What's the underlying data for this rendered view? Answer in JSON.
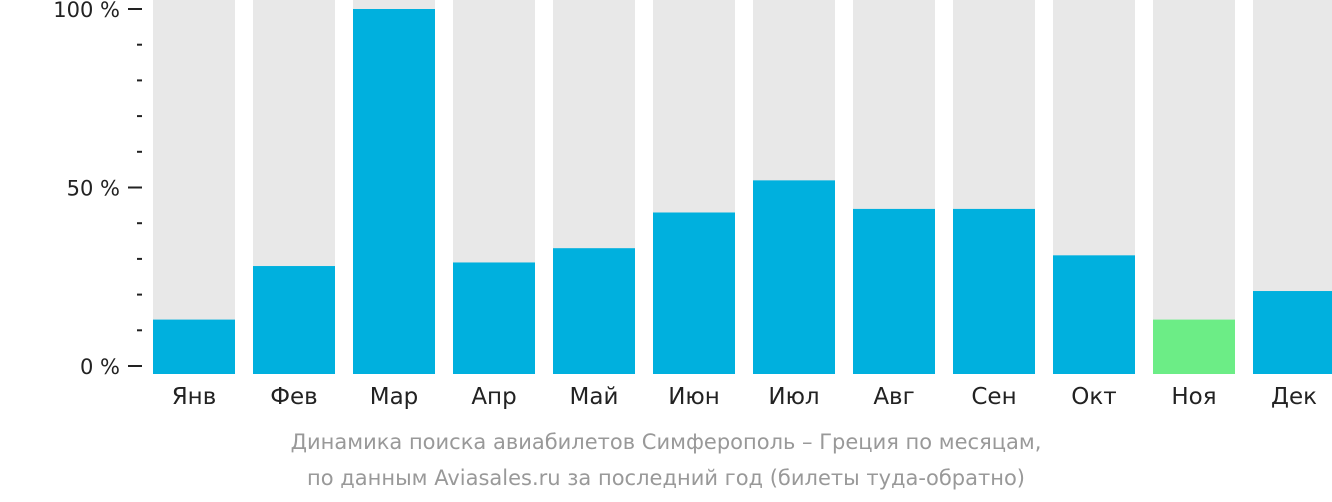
{
  "chart_data": {
    "type": "bar",
    "categories": [
      "Янв",
      "Фев",
      "Мар",
      "Апр",
      "Май",
      "Июн",
      "Июл",
      "Авг",
      "Сен",
      "Окт",
      "Ноя",
      "Дек"
    ],
    "values": [
      13,
      28,
      100,
      29,
      33,
      43,
      52,
      44,
      44,
      31,
      13,
      21
    ],
    "highlight_index": 10,
    "ylim": [
      0,
      100
    ],
    "y_ticks": [
      {
        "value": 100,
        "label": "100 %"
      },
      {
        "value": 50,
        "label": "50 %"
      },
      {
        "value": 0,
        "label": "0 %"
      }
    ],
    "y_minor_tick_step": 10,
    "grid": false,
    "caption_line1": "Динамика поиска авиабилетов Симферополь – Греция по месяцам,",
    "caption_line2": "по данным Aviasales.ru за последний год (билеты туда-обратно)",
    "colors": {
      "bar": "#00b0de",
      "highlight": "#6ced86",
      "background_bar": "#e8e8e8",
      "axis": "#222222",
      "caption": "#999999"
    }
  }
}
